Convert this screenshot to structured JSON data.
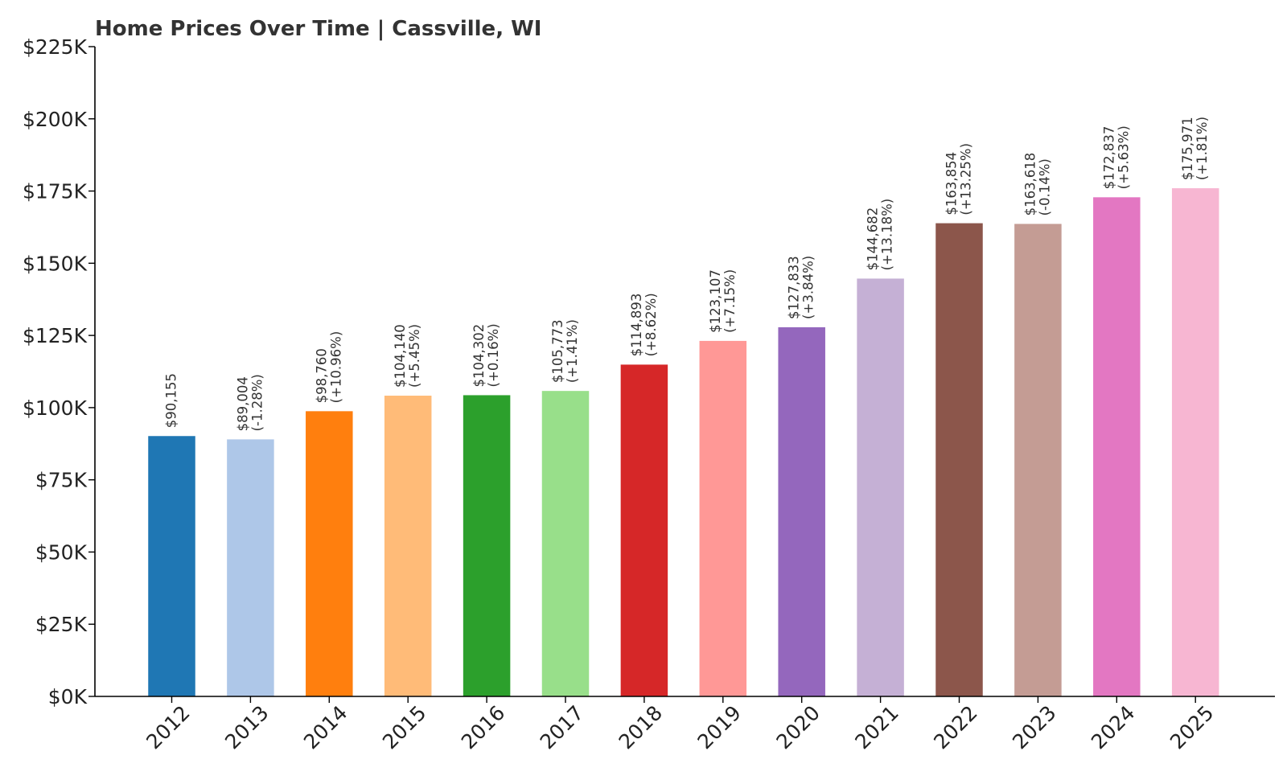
{
  "chart_data": {
    "type": "bar",
    "title": "Home Prices Over Time | Cassville, WI",
    "xlabel": "",
    "ylabel": "",
    "ylim": [
      0,
      225000
    ],
    "y_tick_values": [
      0,
      25000,
      50000,
      75000,
      100000,
      125000,
      150000,
      175000,
      200000,
      225000
    ],
    "y_tick_labels": [
      "$0K",
      "$25K",
      "$50K",
      "$75K",
      "$100K",
      "$125K",
      "$150K",
      "$175K",
      "$200K",
      "$225K"
    ],
    "grid": false,
    "legend": "none",
    "categories": [
      "2012",
      "2013",
      "2014",
      "2015",
      "2016",
      "2017",
      "2018",
      "2019",
      "2020",
      "2021",
      "2022",
      "2023",
      "2024",
      "2025"
    ],
    "values": [
      90155,
      89004,
      98760,
      104140,
      104302,
      105773,
      114893,
      123107,
      127833,
      144682,
      163854,
      163618,
      172837,
      175971
    ],
    "value_labels": [
      "$90,155",
      "$89,004",
      "$98,760",
      "$104,140",
      "$104,302",
      "$105,773",
      "$114,893",
      "$123,107",
      "$127,833",
      "$144,682",
      "$163,854",
      "$163,618",
      "$172,837",
      "$175,971"
    ],
    "change_labels": [
      "",
      "(-1.28%)",
      "(+10.96%)",
      "(+5.45%)",
      "(+0.16%)",
      "(+1.41%)",
      "(+8.62%)",
      "(+7.15%)",
      "(+3.84%)",
      "(+13.18%)",
      "(+13.25%)",
      "(-0.14%)",
      "(+5.63%)",
      "(+1.81%)"
    ],
    "colors": [
      "#1f77b4",
      "#aec7e8",
      "#ff7f0e",
      "#ffbb78",
      "#2ca02c",
      "#98df8a",
      "#d62728",
      "#ff9896",
      "#9467bd",
      "#c5b0d5",
      "#8c564b",
      "#c49c94",
      "#e377c2",
      "#f7b6d2"
    ]
  }
}
